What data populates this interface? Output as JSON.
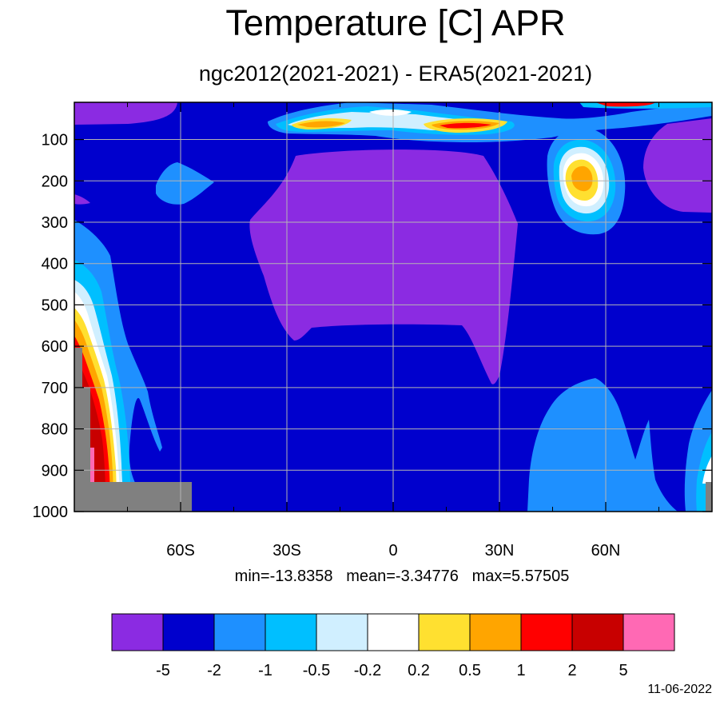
{
  "chart_data": {
    "type": "heatmap",
    "title": "Temperature [C] APR",
    "subtitle": "ngc2012(2021-2021) - ERA5(2021-2021)",
    "xticks": [
      {
        "value": -60,
        "label": "60S"
      },
      {
        "value": -30,
        "label": "30S"
      },
      {
        "value": 0,
        "label": "0"
      },
      {
        "value": 30,
        "label": "30N"
      },
      {
        "value": 60,
        "label": "60N"
      }
    ],
    "xlim": [
      -90,
      90
    ],
    "yticks": [
      100,
      200,
      300,
      400,
      500,
      600,
      700,
      800,
      900,
      1000
    ],
    "ylim": [
      10,
      1000
    ],
    "grid": true,
    "stats": {
      "min": "min=-13.8358",
      "mean": "mean=-3.34776",
      "max": "max=5.57505"
    },
    "colorbar": {
      "colors": [
        "#8b2be2",
        "#0000cd",
        "#1e90ff",
        "#00bfff",
        "#d0efff",
        "#ffffff",
        "#ffe030",
        "#ffa500",
        "#ff0000",
        "#c80000",
        "#ff69b4"
      ],
      "levels": [
        "-5",
        "-2",
        "-1",
        "-0.5",
        "-0.2",
        "0.2",
        "0.5",
        "1",
        "2",
        "5"
      ]
    },
    "missing_color": "#808080"
  },
  "date": "11-06-2022"
}
